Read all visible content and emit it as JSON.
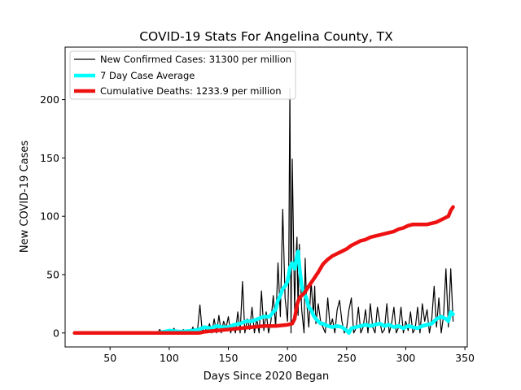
{
  "chart_data": {
    "type": "line",
    "title": "COVID-19 Stats For Angelina County, TX",
    "xlabel": "Days Since 2020 Began",
    "ylabel": "New COVID-19 Cases",
    "xlim": [
      12,
      352
    ],
    "ylim": [
      -12,
      245
    ],
    "x_ticks": [
      50,
      100,
      150,
      200,
      250,
      300,
      350
    ],
    "y_ticks": [
      0,
      50,
      100,
      150,
      200
    ],
    "grid": false,
    "legend_position": "top-left",
    "series": [
      {
        "name": "New Confirmed Cases: 31300 per million",
        "color": "#000000",
        "points": [
          [
            20,
            0
          ],
          [
            90,
            0
          ],
          [
            92,
            3
          ],
          [
            94,
            0
          ],
          [
            96,
            2
          ],
          [
            98,
            0
          ],
          [
            100,
            1
          ],
          [
            102,
            0
          ],
          [
            104,
            4
          ],
          [
            106,
            0
          ],
          [
            108,
            2
          ],
          [
            110,
            0
          ],
          [
            112,
            3
          ],
          [
            114,
            0
          ],
          [
            116,
            2
          ],
          [
            118,
            0
          ],
          [
            120,
            5
          ],
          [
            122,
            0
          ],
          [
            124,
            3
          ],
          [
            126,
            24
          ],
          [
            128,
            0
          ],
          [
            130,
            6
          ],
          [
            132,
            0
          ],
          [
            134,
            8
          ],
          [
            136,
            0
          ],
          [
            138,
            12
          ],
          [
            140,
            0
          ],
          [
            142,
            15
          ],
          [
            144,
            0
          ],
          [
            146,
            10
          ],
          [
            148,
            4
          ],
          [
            150,
            14
          ],
          [
            152,
            0
          ],
          [
            154,
            8
          ],
          [
            156,
            0
          ],
          [
            158,
            18
          ],
          [
            160,
            0
          ],
          [
            162,
            44
          ],
          [
            164,
            0
          ],
          [
            166,
            12
          ],
          [
            168,
            3
          ],
          [
            170,
            22
          ],
          [
            172,
            0
          ],
          [
            174,
            12
          ],
          [
            176,
            0
          ],
          [
            178,
            36
          ],
          [
            180,
            2
          ],
          [
            182,
            18
          ],
          [
            184,
            0
          ],
          [
            186,
            10
          ],
          [
            188,
            32
          ],
          [
            190,
            5
          ],
          [
            192,
            60
          ],
          [
            194,
            14
          ],
          [
            196,
            106
          ],
          [
            198,
            30
          ],
          [
            200,
            10
          ],
          [
            201,
            45
          ],
          [
            202,
            210
          ],
          [
            203,
            0
          ],
          [
            204,
            149
          ],
          [
            206,
            20
          ],
          [
            207,
            60
          ],
          [
            208,
            82
          ],
          [
            209,
            15
          ],
          [
            210,
            76
          ],
          [
            212,
            20
          ],
          [
            214,
            0
          ],
          [
            215,
            64
          ],
          [
            216,
            30
          ],
          [
            218,
            5
          ],
          [
            220,
            44
          ],
          [
            221,
            28
          ],
          [
            222,
            15
          ],
          [
            223,
            40
          ],
          [
            224,
            8
          ],
          [
            226,
            25
          ],
          [
            228,
            10
          ],
          [
            230,
            5
          ],
          [
            232,
            0
          ],
          [
            234,
            30
          ],
          [
            236,
            5
          ],
          [
            238,
            12
          ],
          [
            240,
            0
          ],
          [
            242,
            20
          ],
          [
            244,
            28
          ],
          [
            246,
            10
          ],
          [
            248,
            0
          ],
          [
            250,
            4
          ],
          [
            252,
            20
          ],
          [
            254,
            30
          ],
          [
            256,
            0
          ],
          [
            258,
            4
          ],
          [
            260,
            22
          ],
          [
            262,
            0
          ],
          [
            264,
            5
          ],
          [
            266,
            20
          ],
          [
            268,
            0
          ],
          [
            270,
            25
          ],
          [
            272,
            5
          ],
          [
            274,
            0
          ],
          [
            276,
            22
          ],
          [
            278,
            10
          ],
          [
            280,
            0
          ],
          [
            282,
            3
          ],
          [
            284,
            25
          ],
          [
            286,
            0
          ],
          [
            288,
            8
          ],
          [
            290,
            22
          ],
          [
            292,
            0
          ],
          [
            294,
            5
          ],
          [
            296,
            22
          ],
          [
            298,
            0
          ],
          [
            300,
            10
          ],
          [
            302,
            2
          ],
          [
            304,
            18
          ],
          [
            306,
            0
          ],
          [
            308,
            4
          ],
          [
            310,
            22
          ],
          [
            312,
            0
          ],
          [
            314,
            25
          ],
          [
            316,
            10
          ],
          [
            318,
            20
          ],
          [
            320,
            0
          ],
          [
            322,
            12
          ],
          [
            324,
            40
          ],
          [
            326,
            5
          ],
          [
            328,
            30
          ],
          [
            330,
            0
          ],
          [
            332,
            15
          ],
          [
            334,
            55
          ],
          [
            336,
            5
          ],
          [
            338,
            55
          ],
          [
            340,
            10
          ]
        ]
      },
      {
        "name": "7 Day Case Average",
        "color": "#00ffff",
        "points": [
          [
            20,
            0
          ],
          [
            90,
            0
          ],
          [
            100,
            2
          ],
          [
            110,
            1
          ],
          [
            120,
            2
          ],
          [
            125,
            3
          ],
          [
            130,
            5
          ],
          [
            135,
            4
          ],
          [
            140,
            6
          ],
          [
            145,
            5
          ],
          [
            150,
            5
          ],
          [
            155,
            7
          ],
          [
            160,
            8
          ],
          [
            165,
            10
          ],
          [
            170,
            10
          ],
          [
            175,
            12
          ],
          [
            180,
            14
          ],
          [
            185,
            14
          ],
          [
            188,
            18
          ],
          [
            190,
            20
          ],
          [
            192,
            28
          ],
          [
            194,
            32
          ],
          [
            196,
            38
          ],
          [
            198,
            40
          ],
          [
            200,
            44
          ],
          [
            202,
            56
          ],
          [
            204,
            60
          ],
          [
            206,
            55
          ],
          [
            208,
            66
          ],
          [
            209,
            70
          ],
          [
            210,
            58
          ],
          [
            212,
            40
          ],
          [
            214,
            34
          ],
          [
            216,
            30
          ],
          [
            218,
            22
          ],
          [
            220,
            20
          ],
          [
            222,
            15
          ],
          [
            224,
            12
          ],
          [
            226,
            10
          ],
          [
            228,
            8
          ],
          [
            230,
            8
          ],
          [
            234,
            6
          ],
          [
            238,
            5
          ],
          [
            242,
            6
          ],
          [
            246,
            5
          ],
          [
            250,
            2
          ],
          [
            252,
            0
          ],
          [
            254,
            4
          ],
          [
            258,
            5
          ],
          [
            262,
            6
          ],
          [
            266,
            7
          ],
          [
            270,
            6
          ],
          [
            274,
            7
          ],
          [
            278,
            8
          ],
          [
            282,
            6
          ],
          [
            286,
            7
          ],
          [
            290,
            5
          ],
          [
            294,
            6
          ],
          [
            298,
            4
          ],
          [
            302,
            6
          ],
          [
            306,
            5
          ],
          [
            310,
            4
          ],
          [
            314,
            6
          ],
          [
            318,
            7
          ],
          [
            322,
            8
          ],
          [
            326,
            12
          ],
          [
            330,
            14
          ],
          [
            334,
            12
          ],
          [
            336,
            10
          ],
          [
            338,
            18
          ],
          [
            340,
            16
          ]
        ]
      },
      {
        "name": "Cumulative Deaths: 1233.9 per million",
        "color": "#ee1111",
        "points": [
          [
            20,
            0
          ],
          [
            125,
            0
          ],
          [
            130,
            1
          ],
          [
            140,
            2
          ],
          [
            150,
            3
          ],
          [
            160,
            4
          ],
          [
            170,
            5
          ],
          [
            180,
            6
          ],
          [
            190,
            6
          ],
          [
            200,
            7
          ],
          [
            204,
            8
          ],
          [
            206,
            12
          ],
          [
            208,
            24
          ],
          [
            210,
            30
          ],
          [
            214,
            34
          ],
          [
            218,
            40
          ],
          [
            222,
            46
          ],
          [
            226,
            52
          ],
          [
            230,
            59
          ],
          [
            234,
            63
          ],
          [
            238,
            66
          ],
          [
            242,
            68
          ],
          [
            246,
            70
          ],
          [
            250,
            72
          ],
          [
            254,
            75
          ],
          [
            258,
            77
          ],
          [
            262,
            79
          ],
          [
            266,
            80
          ],
          [
            270,
            82
          ],
          [
            274,
            83
          ],
          [
            278,
            84
          ],
          [
            282,
            85
          ],
          [
            286,
            86
          ],
          [
            290,
            87
          ],
          [
            294,
            89
          ],
          [
            298,
            90
          ],
          [
            302,
            92
          ],
          [
            306,
            93
          ],
          [
            310,
            93
          ],
          [
            314,
            93
          ],
          [
            318,
            93
          ],
          [
            322,
            94
          ],
          [
            326,
            95
          ],
          [
            330,
            97
          ],
          [
            334,
            99
          ],
          [
            336,
            100
          ],
          [
            338,
            105
          ],
          [
            340,
            108
          ]
        ]
      }
    ]
  }
}
